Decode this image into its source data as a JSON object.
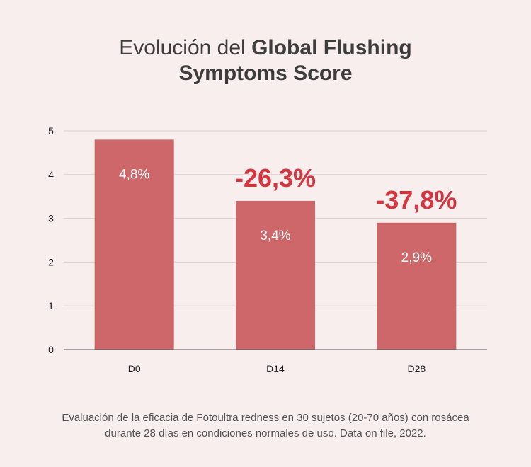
{
  "title": {
    "prefix": "Evolución del ",
    "bold_line1": "Global Flushing",
    "bold_line2": "Symptoms Score"
  },
  "chart_data": {
    "type": "bar",
    "categories": [
      "D0",
      "D14",
      "D28"
    ],
    "values": [
      4.8,
      3.4,
      2.9
    ],
    "value_labels": [
      "4,8%",
      "3,4%",
      "2,9%"
    ],
    "annotations": [
      "",
      "-26,3%",
      "-37,8%"
    ],
    "ylim": [
      0,
      5
    ],
    "yticks": [
      "0",
      "1",
      "2",
      "3",
      "4",
      "5"
    ],
    "grid": true,
    "colors": {
      "bar": "#cd676a",
      "annotation": "#d6343f",
      "grid": "#d9d0cf"
    }
  },
  "footnote": {
    "line1": "Evaluación de la eficacia de Fotoultra redness en 30 sujetos (20-70 años) con rosácea",
    "line2": "durante 28 días en condiciones normales de uso. Data on file, 2022."
  }
}
